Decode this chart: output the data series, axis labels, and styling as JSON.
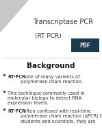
{
  "title_line1": "Transcriptase PCR",
  "title_line2": "(RT PCR)",
  "section_title": "Background",
  "bg_color": "#ffffff",
  "pdf_box_color": "#1b3a4b",
  "triangle_color": "#c8c8c8",
  "title_color": "#333333",
  "section_color": "#111111",
  "bullet_color": "#333333",
  "bullet_marker_color": "#444444",
  "title_fontsize": 7.0,
  "subtitle_fontsize": 6.5,
  "section_fontsize": 7.5,
  "bullet_fontsize": 4.8
}
